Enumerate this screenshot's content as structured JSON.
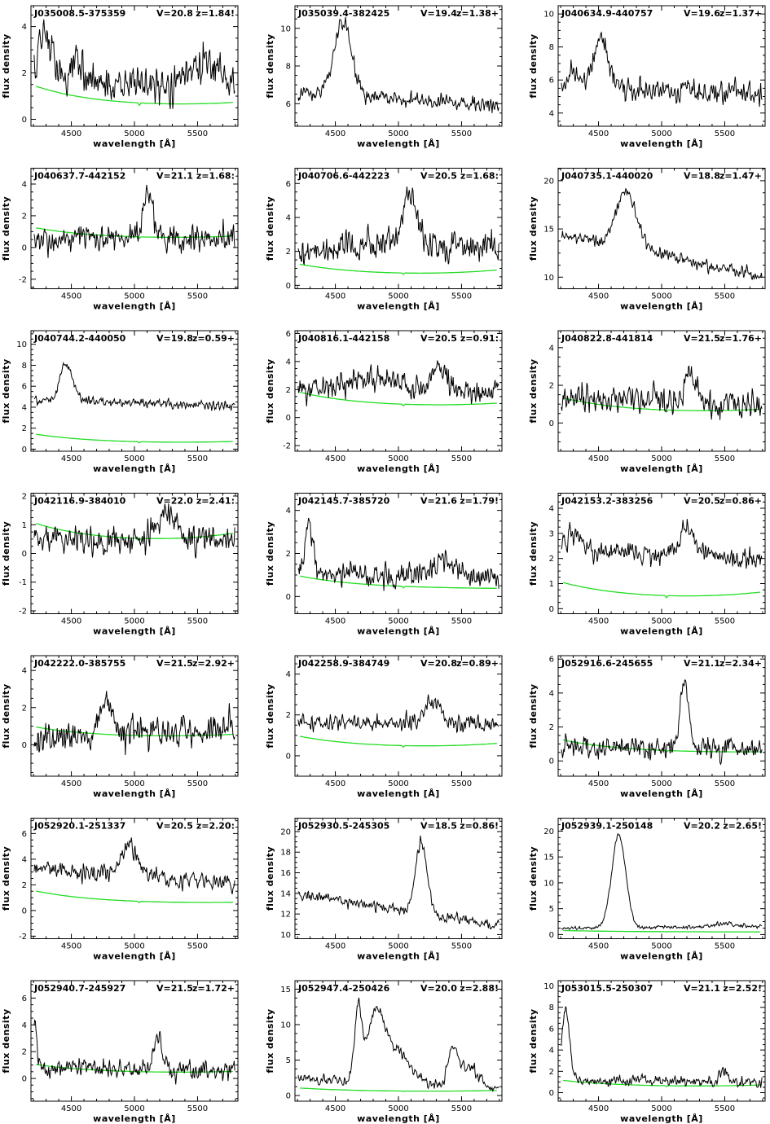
{
  "axis_labels": {
    "x": "wavelength [Å]",
    "y": "flux density"
  },
  "colors": {
    "spectrum": "#000000",
    "noise": "#22dd22",
    "frame": "#000000"
  },
  "chart_data": [
    {
      "type": "line",
      "name": "J035008.5-375359",
      "vmag": "V=20.8",
      "z": "z=1.84!",
      "xlim": [
        4180,
        5820
      ],
      "ylim": [
        -0.3,
        4.9
      ],
      "yticks": [
        0,
        2,
        4
      ],
      "features": [
        [
          4300,
          2.3,
          60
        ],
        [
          4560,
          1.0,
          70
        ],
        [
          5560,
          0.9,
          120
        ]
      ],
      "base": [
        1.4,
        1.6
      ],
      "noise": 1.0,
      "fc": [
        1.5,
        0.5,
        0.7
      ],
      "seed": 1
    },
    {
      "type": "line",
      "name": "J035039.4-382425",
      "vmag": "V=19.4",
      "z": "z=1.38+",
      "xlim": [
        4180,
        5820
      ],
      "ylim": [
        4.8,
        11.2
      ],
      "yticks": [
        6,
        8,
        10
      ],
      "features": [
        [
          4560,
          3.8,
          70
        ]
      ],
      "base": [
        6.6,
        5.9
      ],
      "noise": 0.5,
      "fc": [],
      "seed": 2
    },
    {
      "type": "line",
      "name": "J040634.9-440757",
      "vmag": "V=19.6",
      "z": "z=1.37+",
      "xlim": [
        4180,
        5820
      ],
      "ylim": [
        3.2,
        10.5
      ],
      "yticks": [
        4,
        6,
        8,
        10
      ],
      "features": [
        [
          4520,
          2.8,
          60
        ],
        [
          4300,
          0.8,
          50
        ]
      ],
      "base": [
        5.6,
        5.1
      ],
      "noise": 0.8,
      "fc": [],
      "seed": 3
    },
    {
      "type": "line",
      "name": "J040637.7-442152",
      "vmag": "V=21.1",
      "z": "z=1.68:",
      "xlim": [
        4180,
        5820
      ],
      "ylim": [
        -2.6,
        5.0
      ],
      "yticks": [
        -2,
        0,
        2,
        4
      ],
      "features": [
        [
          5110,
          2.8,
          35
        ]
      ],
      "base": [
        0.7,
        0.7
      ],
      "noise": 1.0,
      "fc": [
        1.3,
        0.5,
        0.7
      ],
      "seed": 4
    },
    {
      "type": "line",
      "name": "J040706.6-442223",
      "vmag": "V=20.5",
      "z": "z=1.68:",
      "xlim": [
        4180,
        5820
      ],
      "ylim": [
        -0.2,
        6.9
      ],
      "yticks": [
        0,
        2,
        4,
        6
      ],
      "features": [
        [
          5100,
          2.6,
          60
        ],
        [
          4950,
          0.6,
          100
        ]
      ],
      "base": [
        2.0,
        2.2
      ],
      "noise": 1.1,
      "fc": [
        1.3,
        0.55,
        0.9
      ],
      "seed": 5
    },
    {
      "type": "line",
      "name": "J040735.1-440020",
      "vmag": "V=18.8",
      "z": "z=1.47+",
      "xlim": [
        4180,
        5820
      ],
      "ylim": [
        8.8,
        21.3
      ],
      "yticks": [
        10,
        15,
        20
      ],
      "features": [
        [
          4720,
          6.0,
          80
        ]
      ],
      "base": [
        14.5,
        10.0
      ],
      "noise": 0.7,
      "fc": [],
      "seed": 6
    },
    {
      "type": "line",
      "name": "J040744.2-440050",
      "vmag": "V=19.8",
      "z": "z=0.59+",
      "xlim": [
        4180,
        5820
      ],
      "ylim": [
        -0.2,
        11.3
      ],
      "yticks": [
        0,
        2,
        4,
        6,
        8,
        10
      ],
      "features": [
        [
          4460,
          3.5,
          50
        ]
      ],
      "base": [
        4.7,
        4.1
      ],
      "noise": 0.5,
      "fc": [
        1.5,
        0.5,
        0.7
      ],
      "seed": 7
    },
    {
      "type": "line",
      "name": "J040816.1-442158",
      "vmag": "V=20.5",
      "z": "z=0.91:",
      "xlim": [
        4180,
        5820
      ],
      "ylim": [
        -2.4,
        6.2
      ],
      "yticks": [
        -2,
        0,
        2,
        4,
        6
      ],
      "features": [
        [
          5320,
          2.0,
          50
        ],
        [
          4800,
          0.8,
          200
        ]
      ],
      "base": [
        2.0,
        1.8
      ],
      "noise": 1.1,
      "fc": [
        1.9,
        0.7,
        1.0
      ],
      "seed": 8
    },
    {
      "type": "line",
      "name": "J040822.8-441814",
      "vmag": "V=21.5",
      "z": "z=1.76+",
      "xlim": [
        4180,
        5820
      ],
      "ylim": [
        -1.5,
        4.9
      ],
      "yticks": [
        0,
        2,
        4
      ],
      "features": [
        [
          5230,
          1.5,
          50
        ]
      ],
      "base": [
        1.2,
        1.0
      ],
      "noise": 0.9,
      "fc": [
        1.4,
        0.5,
        0.7
      ],
      "seed": 9
    },
    {
      "type": "line",
      "name": "J042116.9-384010",
      "vmag": "V=22.0",
      "z": "z=2.41:",
      "xlim": [
        4180,
        5820
      ],
      "ylim": [
        -2.1,
        2.1
      ],
      "yticks": [
        -2,
        -1,
        0,
        1,
        2
      ],
      "features": [
        [
          5250,
          1.0,
          80
        ]
      ],
      "base": [
        0.4,
        0.5
      ],
      "noise": 0.6,
      "fc": [
        1.1,
        0.35,
        0.7
      ],
      "seed": 10
    },
    {
      "type": "line",
      "name": "J042145.7-385720",
      "vmag": "V=21.6",
      "z": "z=1.79!",
      "xlim": [
        4180,
        5820
      ],
      "ylim": [
        -0.8,
        4.8
      ],
      "yticks": [
        0,
        2,
        4
      ],
      "features": [
        [
          4290,
          2.0,
          30
        ],
        [
          5350,
          0.6,
          80
        ]
      ],
      "base": [
        1.1,
        0.9
      ],
      "noise": 0.7,
      "fc": [
        1.0,
        0.35,
        0.35
      ],
      "seed": 11
    },
    {
      "type": "line",
      "name": "J042153.2-383256",
      "vmag": "V=20.5",
      "z": "z=0.86+",
      "xlim": [
        4180,
        5820
      ],
      "ylim": [
        -0.2,
        4.6
      ],
      "yticks": [
        0,
        1,
        2,
        3,
        4
      ],
      "features": [
        [
          5200,
          1.2,
          60
        ],
        [
          4300,
          0.5,
          60
        ]
      ],
      "base": [
        2.4,
        1.9
      ],
      "noise": 0.5,
      "fc": [
        1.1,
        0.35,
        0.65
      ],
      "seed": 12
    },
    {
      "type": "line",
      "name": "J042222.0-385755",
      "vmag": "V=21.5",
      "z": "z=2.92+",
      "xlim": [
        4180,
        5820
      ],
      "ylim": [
        -1.7,
        4.8
      ],
      "yticks": [
        0,
        2,
        4
      ],
      "features": [
        [
          4770,
          2.0,
          40
        ]
      ],
      "base": [
        0.2,
        1.1
      ],
      "noise": 1.0,
      "fc": [
        1.0,
        0.35,
        0.55
      ],
      "seed": 13
    },
    {
      "type": "line",
      "name": "J042258.9-384749",
      "vmag": "V=20.8",
      "z": "z=0.89+",
      "xlim": [
        4180,
        5820
      ],
      "ylim": [
        -1.0,
        4.9
      ],
      "yticks": [
        0,
        2,
        4
      ],
      "features": [
        [
          5270,
          1.1,
          60
        ]
      ],
      "base": [
        1.6,
        1.6
      ],
      "noise": 0.5,
      "fc": [
        1.0,
        0.35,
        0.6
      ],
      "seed": 14
    },
    {
      "type": "line",
      "name": "J052916.6-245655",
      "vmag": "V=21.1",
      "z": "z=2.34+",
      "xlim": [
        4180,
        5820
      ],
      "ylim": [
        -0.9,
        6.2
      ],
      "yticks": [
        0,
        2,
        4,
        6
      ],
      "features": [
        [
          5180,
          3.8,
          35
        ]
      ],
      "base": [
        0.9,
        0.7
      ],
      "noise": 0.8,
      "fc": [
        1.3,
        0.45,
        0.5
      ],
      "seed": 15
    },
    {
      "type": "line",
      "name": "J052920.1-251337",
      "vmag": "V=20.5",
      "z": "z=2.20:",
      "xlim": [
        4180,
        5820
      ],
      "ylim": [
        -2.2,
        7.2
      ],
      "yticks": [
        -2,
        0,
        2,
        4,
        6
      ],
      "features": [
        [
          4960,
          2.5,
          60
        ]
      ],
      "base": [
        3.3,
        2.1
      ],
      "noise": 0.8,
      "fc": [
        1.6,
        0.5,
        0.6
      ],
      "seed": 16
    },
    {
      "type": "line",
      "name": "J052930.5-245305",
      "vmag": "V=18.5",
      "z": "z=0.86!",
      "xlim": [
        4180,
        5820
      ],
      "ylim": [
        9.6,
        21.3
      ],
      "yticks": [
        10,
        12,
        14,
        16,
        18,
        20
      ],
      "features": [
        [
          5180,
          7.0,
          45
        ]
      ],
      "base": [
        14.0,
        10.8
      ],
      "noise": 0.6,
      "fc": [],
      "seed": 17
    },
    {
      "type": "line",
      "name": "J052939.1-250148",
      "vmag": "V=20.2",
      "z": "z=2.65!",
      "xlim": [
        4180,
        5820
      ],
      "ylim": [
        -0.8,
        22.5
      ],
      "yticks": [
        0,
        5,
        10,
        15,
        20
      ],
      "features": [
        [
          4660,
          18.0,
          55
        ],
        [
          5500,
          0.6,
          80
        ]
      ],
      "base": [
        1.2,
        1.6
      ],
      "noise": 0.45,
      "fc": [
        0.8,
        0.5,
        0.5
      ],
      "seed": 18
    },
    {
      "type": "line",
      "name": "J052940.7-245927",
      "vmag": "V=21.5",
      "z": "z=1.72+",
      "xlim": [
        4180,
        5820
      ],
      "ylim": [
        -1.7,
        7.3
      ],
      "yticks": [
        0,
        2,
        4,
        6
      ],
      "features": [
        [
          4210,
          3.5,
          15
        ],
        [
          5190,
          2.6,
          30
        ]
      ],
      "base": [
        0.8,
        0.6
      ],
      "noise": 0.8,
      "fc": [
        1.1,
        0.35,
        0.5
      ],
      "seed": 19
    },
    {
      "type": "line",
      "name": "J052947.4-250426",
      "vmag": "V=20.0",
      "z": "z=2.88!",
      "xlim": [
        4180,
        5820
      ],
      "ylim": [
        -0.8,
        16.2
      ],
      "yticks": [
        0,
        5,
        10,
        15
      ],
      "features": [
        [
          4680,
          10.0,
          28
        ],
        [
          4820,
          8.5,
          70
        ],
        [
          4980,
          4.5,
          110
        ],
        [
          5430,
          5.3,
          40
        ],
        [
          5560,
          3.0,
          70
        ]
      ],
      "base": [
        2.5,
        0.8
      ],
      "noise": 0.9,
      "fc": [
        1.1,
        0.5,
        0.7
      ],
      "seed": 20
    },
    {
      "type": "line",
      "name": "J053015.5-250307",
      "vmag": "V=21.1",
      "z": "z=2.52!",
      "xlim": [
        4180,
        5820
      ],
      "ylim": [
        -0.8,
        10.5
      ],
      "yticks": [
        0,
        2,
        4,
        6,
        8,
        10
      ],
      "features": [
        [
          4240,
          6.5,
          30
        ],
        [
          5500,
          1.0,
          40
        ]
      ],
      "base": [
        1.2,
        1.0
      ],
      "noise": 0.6,
      "fc": [
        1.2,
        0.5,
        0.7
      ],
      "seed": 21
    }
  ]
}
